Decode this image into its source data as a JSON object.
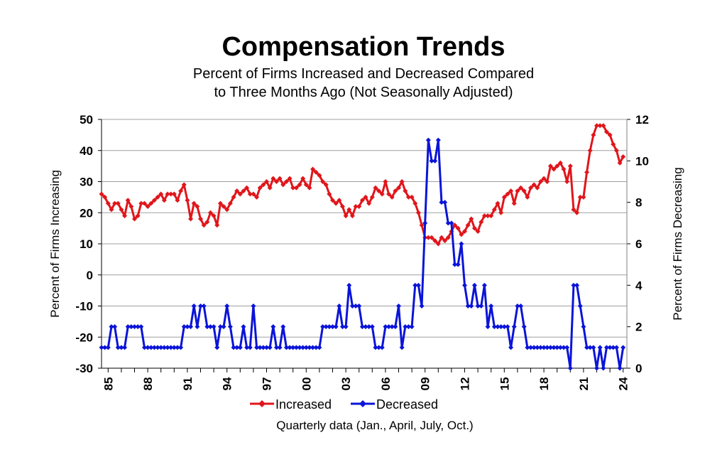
{
  "chart_data": {
    "type": "line",
    "title": "Compensation Trends",
    "subtitle_line1": "Percent of Firms Increased and Decreased Compared",
    "subtitle_line2": "to Three Months Ago (Not Seasonally Adjusted)",
    "xlabel": "Quarterly data (Jan., April, July, Oct.)",
    "ylabel_left": "Percent of Firms Increasing",
    "ylabel_right": "Percent of Firms Decreasing",
    "ylim_left": [
      -30,
      50
    ],
    "ylim_right": [
      0,
      12
    ],
    "yticks_left": [
      "50",
      "40",
      "30",
      "20",
      "10",
      "0",
      "-10",
      "-20",
      "-30"
    ],
    "yticks_right": [
      "12",
      "10",
      "8",
      "6",
      "4",
      "2",
      "0"
    ],
    "xticks": [
      "85",
      "88",
      "91",
      "94",
      "97",
      "00",
      "03",
      "06",
      "09",
      "12",
      "15",
      "18",
      "21",
      "24"
    ],
    "x_start": "1984 Q3",
    "x_end": "2024 Q1",
    "grid": "horizontal",
    "legend_position": "bottom",
    "series": [
      {
        "name": "Increased",
        "axis": "left",
        "color": "#e0161b",
        "values": [
          26,
          25,
          23,
          21,
          23,
          23,
          21,
          19,
          24,
          22,
          18,
          19,
          23,
          23,
          22,
          23,
          24,
          25,
          26,
          24,
          26,
          26,
          26,
          24,
          27,
          29,
          24,
          18,
          23,
          22,
          18,
          16,
          17,
          20,
          19,
          16,
          23,
          22,
          21,
          23,
          25,
          27,
          26,
          27,
          28,
          26,
          26,
          25,
          28,
          29,
          30,
          28,
          31,
          30,
          31,
          29,
          30,
          31,
          28,
          28,
          29,
          31,
          29,
          28,
          34,
          33,
          32,
          30,
          29,
          26,
          24,
          23,
          24,
          22,
          19,
          21,
          19,
          22,
          22,
          24,
          25,
          23,
          25,
          28,
          27,
          26,
          30,
          26,
          25,
          27,
          28,
          30,
          27,
          25,
          25,
          23,
          20,
          16,
          12,
          12,
          12,
          11,
          10,
          12,
          11,
          12,
          14,
          16,
          15,
          13,
          14,
          16,
          18,
          15,
          14,
          17,
          19,
          19,
          19,
          21,
          23,
          20,
          25,
          26,
          27,
          23,
          27,
          28,
          27,
          25,
          28,
          29,
          28,
          30,
          31,
          30,
          35,
          34,
          35,
          36,
          34,
          30,
          35,
          21,
          20,
          25,
          25,
          33,
          40,
          45,
          48,
          48,
          48,
          46,
          45,
          42,
          40,
          36,
          38
        ]
      },
      {
        "name": "Decreased",
        "axis": "right",
        "color": "#0a14d8",
        "values": [
          1,
          1,
          1,
          2,
          2,
          1,
          1,
          1,
          2,
          2,
          2,
          2,
          2,
          1,
          1,
          1,
          1,
          1,
          1,
          1,
          1,
          1,
          1,
          1,
          1,
          2,
          2,
          2,
          3,
          2,
          3,
          3,
          2,
          2,
          2,
          1,
          2,
          2,
          3,
          2,
          1,
          1,
          1,
          2,
          1,
          1,
          3,
          1,
          1,
          1,
          1,
          1,
          2,
          1,
          1,
          2,
          1,
          1,
          1,
          1,
          1,
          1,
          1,
          1,
          1,
          1,
          1,
          2,
          2,
          2,
          2,
          2,
          3,
          2,
          2,
          4,
          3,
          3,
          3,
          2,
          2,
          2,
          2,
          1,
          1,
          1,
          2,
          2,
          2,
          2,
          3,
          1,
          2,
          2,
          2,
          4,
          4,
          3,
          7,
          11,
          10,
          10,
          11,
          8,
          8,
          7,
          7,
          5,
          5,
          6,
          4,
          3,
          3,
          4,
          3,
          3,
          4,
          2,
          3,
          2,
          2,
          2,
          2,
          2,
          1,
          2,
          3,
          3,
          2,
          1,
          1,
          1,
          1,
          1,
          1,
          1,
          1,
          1,
          1,
          1,
          1,
          1,
          0,
          4,
          4,
          3,
          2,
          1,
          1,
          1,
          0,
          1,
          0,
          1,
          1,
          1,
          1,
          0,
          1
        ]
      }
    ]
  }
}
